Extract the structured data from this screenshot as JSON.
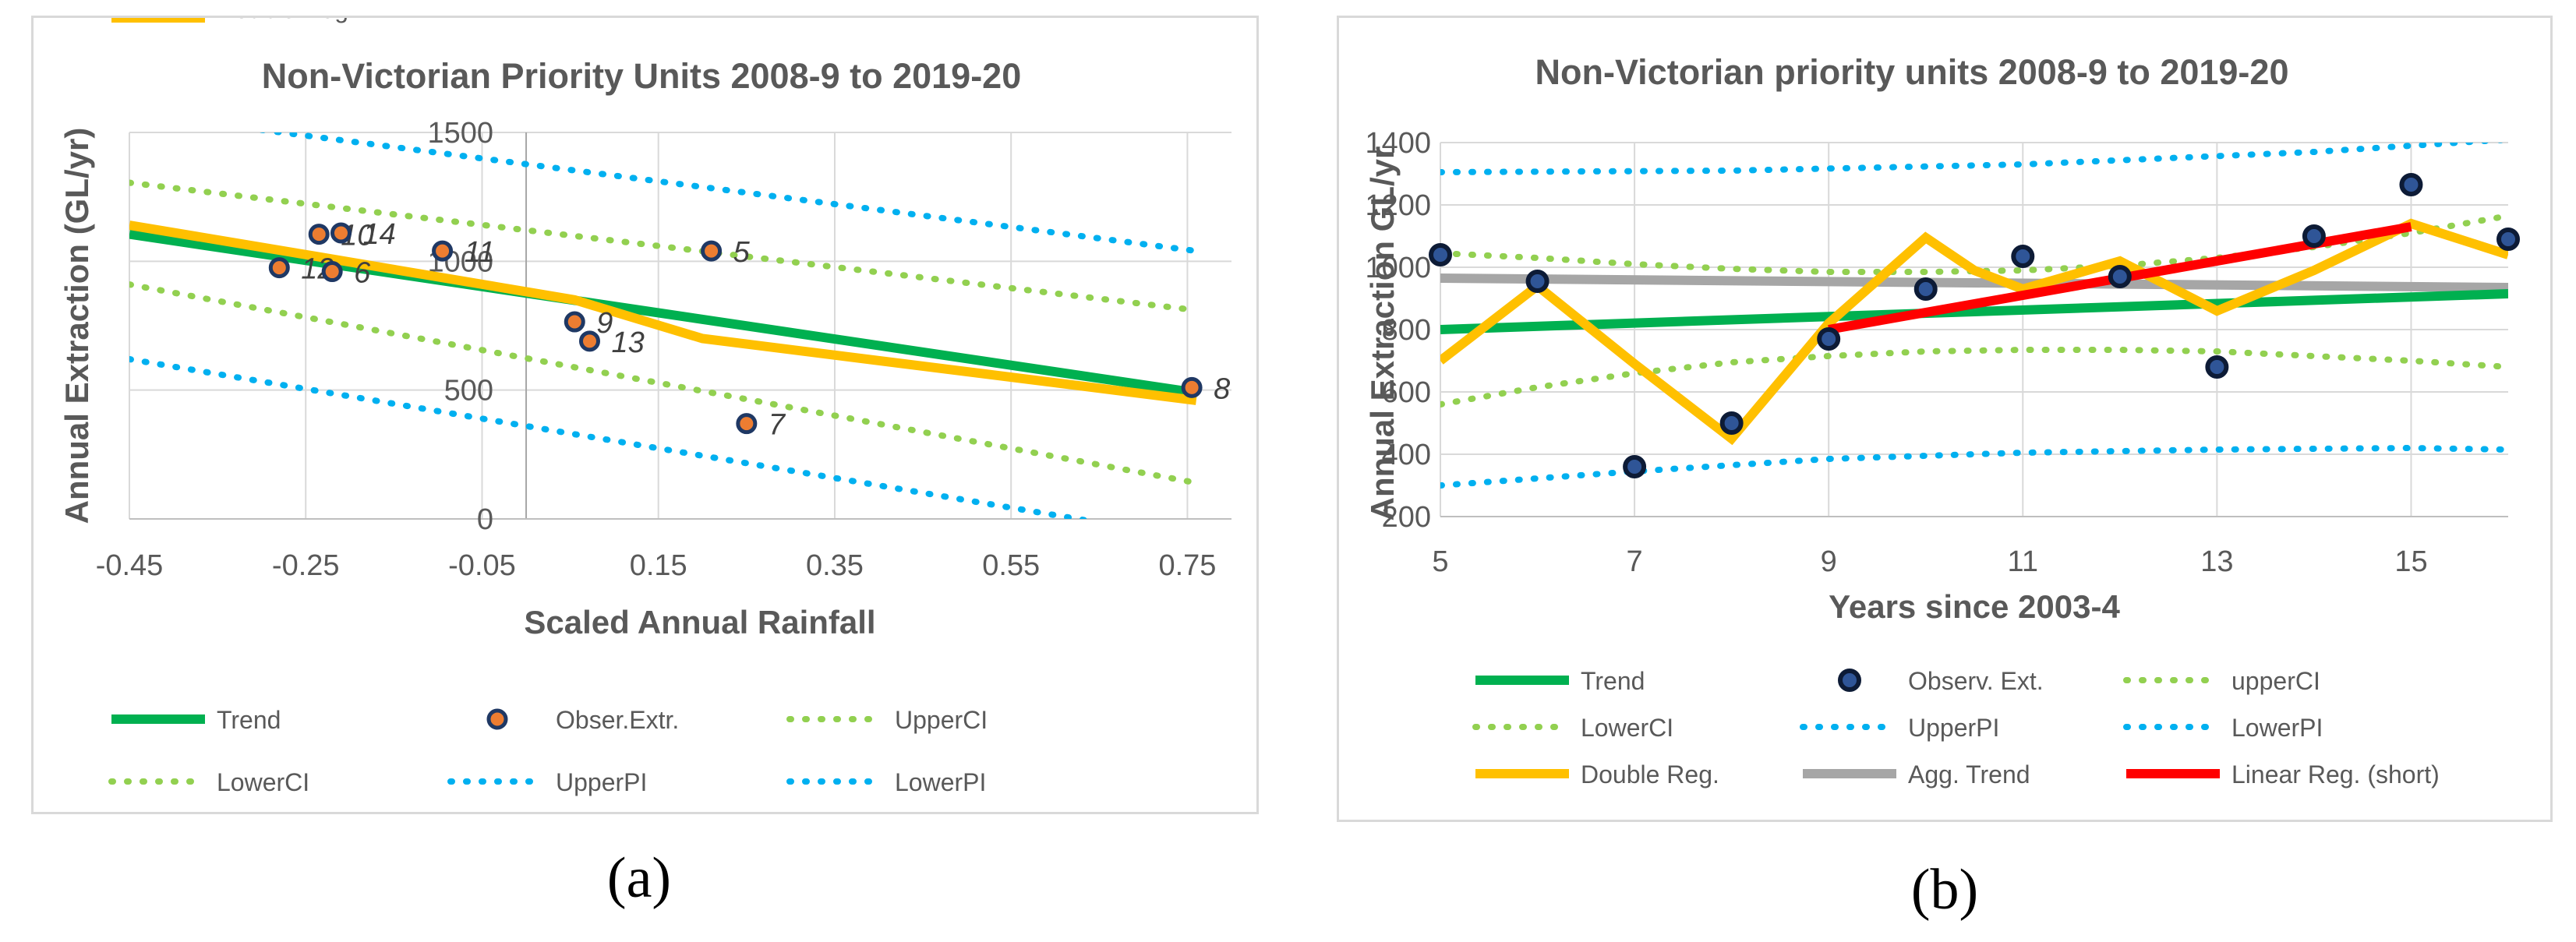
{
  "captions": {
    "a": "(a)",
    "b": "(b)"
  },
  "colors": {
    "green": "#00b050",
    "orange": "#ffc000",
    "blue": "#00b0f0",
    "lightgreen": "#92d050",
    "red": "#ff0000",
    "gray": "#a6a6a6",
    "navy": "#1f3864",
    "markerfill_a": "#ed7d31",
    "markerfill_b": "#2f5597"
  },
  "chart_data": [
    {
      "type": "scatter",
      "title": "Non-Victorian Priority Units 2008-9 to 2019-20",
      "xlabel": "Scaled Annual Rainfall",
      "ylabel": "Annual Extraction (GL/yr)",
      "xlim": [
        -0.45,
        0.8
      ],
      "ylim": [
        0,
        1500
      ],
      "xticks": [
        "-0.45",
        "-0.25",
        "-0.05",
        "0.15",
        "0.35",
        "0.55",
        "0.75"
      ],
      "yticks": [
        "0",
        "500",
        "1000",
        "1500"
      ],
      "grid": true,
      "legend_position": "bottom",
      "legend": [
        "Trend",
        "Obser.Extr.",
        "UpperCI",
        "LowerCI",
        "UpperPI",
        "LowerPI",
        "Double Reg."
      ],
      "observations": [
        {
          "label": "12",
          "x": -0.28,
          "y": 975
        },
        {
          "label": "6",
          "x": -0.22,
          "y": 960
        },
        {
          "label": "10",
          "x": -0.235,
          "y": 1105
        },
        {
          "label": "14",
          "x": -0.21,
          "y": 1110
        },
        {
          "label": "11",
          "x": -0.095,
          "y": 1040
        },
        {
          "label": "9",
          "x": 0.055,
          "y": 765
        },
        {
          "label": "13",
          "x": 0.072,
          "y": 690
        },
        {
          "label": "5",
          "x": 0.21,
          "y": 1040
        },
        {
          "label": "7",
          "x": 0.25,
          "y": 370
        },
        {
          "label": "8",
          "x": 0.755,
          "y": 510
        }
      ],
      "series": [
        {
          "name": "Trend",
          "x": [
            -0.45,
            0.76
          ],
          "y": [
            1105,
            490
          ]
        },
        {
          "name": "UpperCI",
          "x": [
            -0.45,
            0.76
          ],
          "y": [
            1305,
            810
          ]
        },
        {
          "name": "LowerCI",
          "x": [
            -0.45,
            0.76
          ],
          "y": [
            910,
            140
          ]
        },
        {
          "name": "UpperPI",
          "x": [
            -0.3,
            0.76
          ],
          "y": [
            1510,
            1040
          ]
        },
        {
          "name": "LowerPI",
          "x": [
            -0.45,
            0.66
          ],
          "y": [
            620,
            -20
          ]
        },
        {
          "name": "Double Reg.",
          "x": [
            -0.45,
            -0.24,
            0.055,
            0.2,
            0.76
          ],
          "y": [
            1140,
            1020,
            850,
            700,
            460
          ]
        }
      ]
    },
    {
      "type": "line",
      "title": "Non-Victorian priority units 2008-9 to 2019-20",
      "xlabel": "Years since 2003-4",
      "ylabel": "Annual Extraction GL/yr",
      "xlim": [
        5,
        16
      ],
      "ylim": [
        200,
        1400
      ],
      "xticks": [
        "5",
        "7",
        "9",
        "11",
        "13",
        "15"
      ],
      "yticks": [
        "200",
        "400",
        "600",
        "800",
        "1000",
        "1200",
        "1400"
      ],
      "grid": true,
      "legend_position": "bottom",
      "legend": [
        "Trend",
        "Observ. Ext.",
        "upperCI",
        "LowerCI",
        "UpperPI",
        "LowerPI",
        "Double Reg.",
        "Agg. Trend",
        "Linear Reg. (short)"
      ],
      "observations": {
        "x": [
          5,
          6,
          7,
          8,
          9,
          10,
          11,
          12,
          13,
          14,
          15,
          16
        ],
        "y": [
          1040,
          955,
          360,
          500,
          770,
          930,
          1035,
          970,
          680,
          1100,
          1265,
          1090
        ]
      },
      "series": [
        {
          "name": "Trend",
          "x": [
            5,
            16
          ],
          "y": [
            800,
            915
          ]
        },
        {
          "name": "upperCI",
          "x": [
            5,
            6,
            7,
            8,
            9,
            10,
            11,
            12,
            13,
            14,
            15,
            16
          ],
          "y": [
            1045,
            1030,
            1010,
            995,
            985,
            985,
            990,
            1005,
            1030,
            1065,
            1110,
            1165
          ]
        },
        {
          "name": "LowerCI",
          "x": [
            5,
            6,
            7,
            8,
            9,
            10,
            11,
            12,
            13,
            14,
            15,
            16
          ],
          "y": [
            560,
            615,
            660,
            695,
            715,
            730,
            735,
            735,
            730,
            715,
            700,
            680
          ]
        },
        {
          "name": "UpperPI",
          "x": [
            5,
            8,
            11,
            14,
            16
          ],
          "y": [
            1305,
            1310,
            1330,
            1370,
            1410
          ]
        },
        {
          "name": "LowerPI",
          "x": [
            5,
            7,
            9,
            11,
            13,
            15,
            16
          ],
          "y": [
            300,
            345,
            385,
            405,
            415,
            420,
            415
          ]
        },
        {
          "name": "Double Reg.",
          "x": [
            5,
            6,
            7,
            8,
            9,
            10,
            10.5,
            11,
            12,
            13,
            14,
            15,
            16
          ],
          "y": [
            700,
            940,
            690,
            450,
            820,
            1095,
            990,
            930,
            1020,
            860,
            990,
            1140,
            1040
          ]
        },
        {
          "name": "Agg. Trend",
          "x": [
            5,
            16
          ],
          "y": [
            965,
            935
          ]
        },
        {
          "name": "Linear Reg. (short)",
          "x": [
            9,
            15
          ],
          "y": [
            800,
            1130
          ]
        }
      ]
    }
  ]
}
